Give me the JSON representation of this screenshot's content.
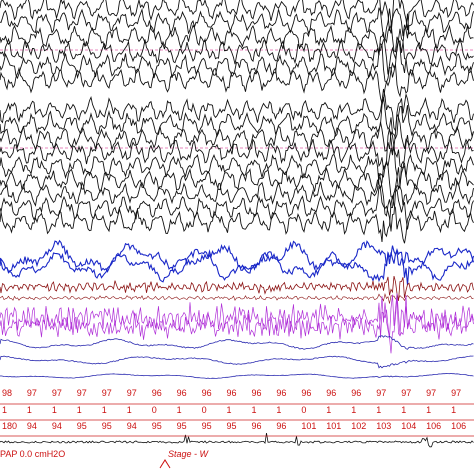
{
  "viewer": {
    "colors": {
      "background": "#ffffff",
      "eeg": "#111111",
      "eog": "#1a28c8",
      "emg": "#8c1414",
      "ecg": "#b030d8",
      "resp": "#2a2ab0",
      "marker_line": "#d0107c",
      "row_line": "#cc2222",
      "text_red": "#cc1111"
    }
  },
  "spo2_row": {
    "values": [
      "98",
      "97",
      "97",
      "97",
      "97",
      "97",
      "96",
      "96",
      "96",
      "96",
      "96",
      "96",
      "96",
      "96",
      "96",
      "97",
      "97",
      "97",
      "97"
    ]
  },
  "event_row": {
    "values": [
      "1",
      "1",
      "1",
      "1",
      "1",
      "1",
      "0",
      "1",
      "0",
      "1",
      "1",
      "1",
      "0",
      "1",
      "1",
      "1",
      "1",
      "1",
      "1"
    ]
  },
  "hr_row": {
    "values": [
      "180",
      "94",
      "94",
      "95",
      "95",
      "94",
      "95",
      "95",
      "95",
      "95",
      "96",
      "96",
      "101",
      "101",
      "102",
      "103",
      "104",
      "106",
      "106"
    ]
  },
  "footer": {
    "pressure_label": "PAP  0.0 cmH2O",
    "stage_label": "Stage - W"
  }
}
